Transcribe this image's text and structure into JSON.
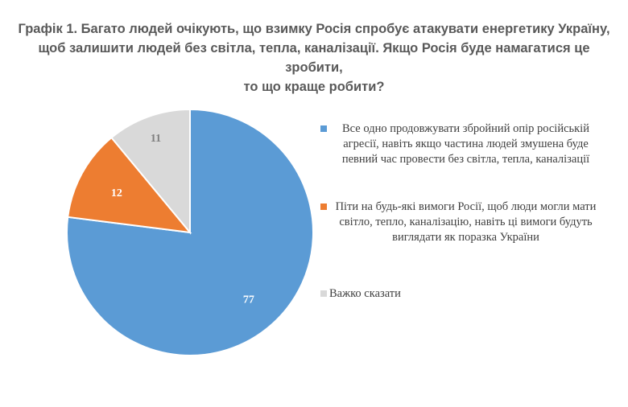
{
  "chart_data": {
    "type": "pie",
    "title_lines": [
      "Графік 1. Багато людей очікують, що взимку Росія спробує атакувати енергетику Україну,",
      "щоб залишити людей без світла, тепла, каналізації. Якщо Росія буде намагатися це зробити,",
      "то що краще робити?"
    ],
    "slices": [
      {
        "label": "Все одно продовжувати збройний опір російській агресії, навіть якщо частина людей змушена буде певний час провести без світла, тепла, каналізації",
        "value": 77,
        "color": "#5b9bd5"
      },
      {
        "label": "Піти на будь-які вимоги Росії, щоб люди могли мати світло, тепло, каналізацію, навіть ці вимоги будуть виглядати як поразка України",
        "value": 12,
        "color": "#ed7d31"
      },
      {
        "label": "Важко сказати",
        "value": 11,
        "color": "#d9d9d9"
      }
    ],
    "legend_position": "right",
    "data_label_colors": [
      "#ffffff",
      "#ffffff",
      "#7f7f7f"
    ]
  }
}
